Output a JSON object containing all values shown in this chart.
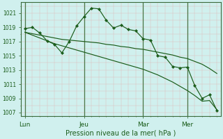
{
  "background_color": "#d0f0ee",
  "grid_color_minor": "#e8c8c8",
  "grid_color_major": "#c8b0b0",
  "line_color": "#1a5c1a",
  "title": "Pression niveau de la mer( hPa )",
  "ylim": [
    1006.5,
    1022.5
  ],
  "yticks": [
    1007,
    1009,
    1011,
    1013,
    1015,
    1017,
    1019,
    1021
  ],
  "xtick_labels": [
    "Lun",
    "Jeu",
    "Mar",
    "Mer"
  ],
  "xtick_positions": [
    0,
    8,
    16,
    22
  ],
  "vline_positions": [
    0,
    8,
    16,
    22
  ],
  "num_points": 27,
  "series1_x": [
    0,
    1,
    2,
    3,
    4,
    5,
    6,
    7,
    8,
    9,
    10,
    11,
    12,
    13,
    14,
    15,
    16,
    17,
    18,
    19,
    20,
    21,
    22,
    23,
    24,
    25,
    26
  ],
  "series1_y": [
    1018.8,
    1019.0,
    1018.2,
    1017.1,
    1016.6,
    1015.4,
    1017.0,
    1019.2,
    1020.5,
    1021.7,
    1021.6,
    1020.0,
    1018.9,
    1019.3,
    1018.7,
    1018.5,
    1017.4,
    1017.2,
    1015.0,
    1014.8,
    1013.5,
    1013.3,
    1013.4,
    1010.8,
    1009.0,
    1009.5,
    1007.3
  ],
  "series2_x": [
    0,
    1,
    2,
    3,
    4,
    5,
    6,
    7,
    8,
    9,
    10,
    11,
    12,
    13,
    14,
    15,
    16,
    17,
    18,
    19,
    20,
    21,
    22,
    23,
    24,
    25,
    26
  ],
  "series2_y": [
    1018.3,
    1017.9,
    1017.5,
    1017.1,
    1016.7,
    1016.4,
    1016.1,
    1015.8,
    1015.5,
    1015.2,
    1014.9,
    1014.6,
    1014.3,
    1014.0,
    1013.7,
    1013.4,
    1013.1,
    1012.7,
    1012.3,
    1011.8,
    1011.3,
    1010.7,
    1010.1,
    1009.4,
    1008.6,
    1008.7,
    1007.4
  ],
  "series3_x": [
    0,
    1,
    2,
    3,
    4,
    5,
    6,
    7,
    8,
    9,
    10,
    11,
    12,
    13,
    14,
    15,
    16,
    17,
    18,
    19,
    20,
    21,
    22,
    23,
    24,
    25,
    26
  ],
  "series3_y": [
    1018.3,
    1018.1,
    1017.9,
    1017.7,
    1017.5,
    1017.3,
    1017.2,
    1017.1,
    1017.0,
    1016.9,
    1016.8,
    1016.6,
    1016.5,
    1016.3,
    1016.2,
    1016.0,
    1015.9,
    1015.7,
    1015.5,
    1015.3,
    1015.1,
    1014.8,
    1014.6,
    1014.2,
    1013.8,
    1013.2,
    1012.5
  ]
}
